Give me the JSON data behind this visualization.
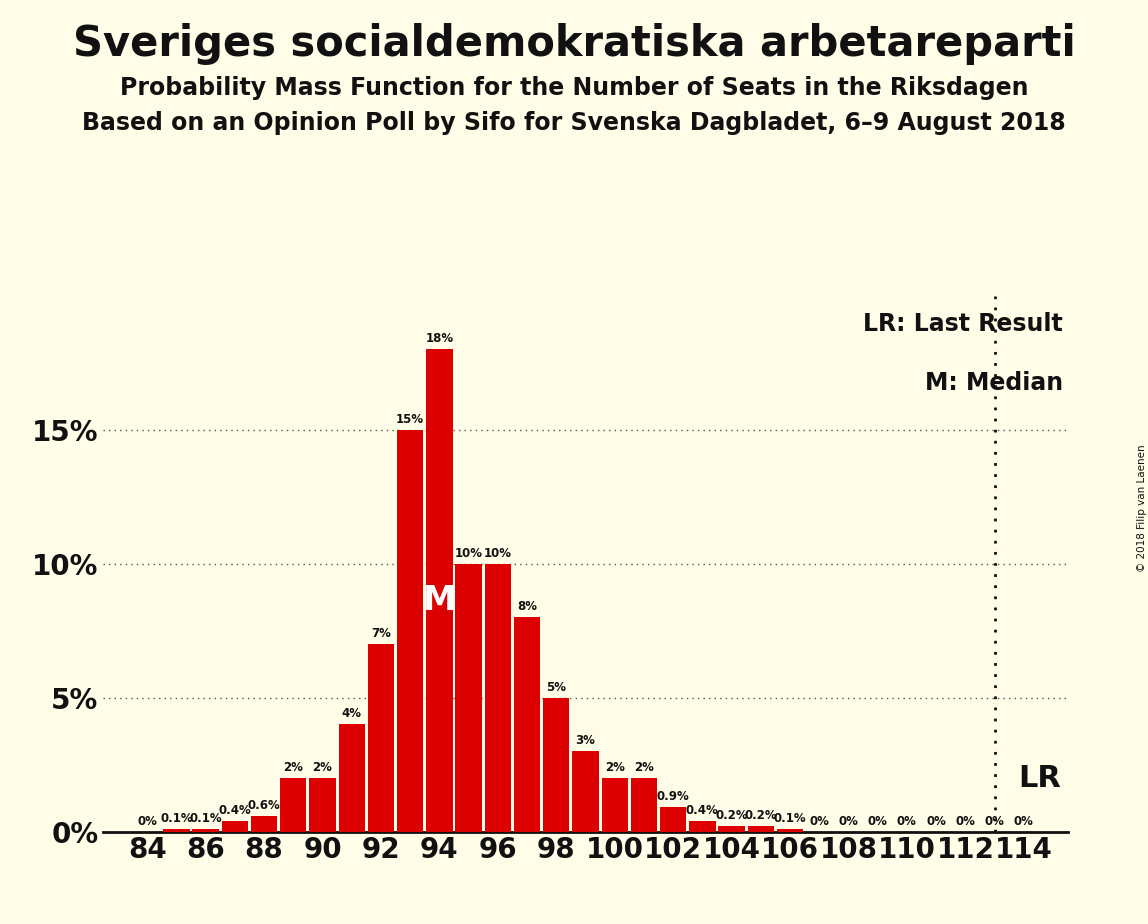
{
  "title": "Sveriges socialdemokratiska arbetareparti",
  "subtitle1": "Probability Mass Function for the Number of Seats in the Riksdagen",
  "subtitle2": "Based on an Opinion Poll by Sifo for Svenska Dagbladet, 6–9 August 2018",
  "copyright": "© 2018 Filip van Laenen",
  "seats": [
    84,
    85,
    86,
    87,
    88,
    89,
    90,
    91,
    92,
    93,
    94,
    95,
    96,
    97,
    98,
    99,
    100,
    101,
    102,
    103,
    104,
    105,
    106,
    107,
    108,
    109,
    110,
    111,
    112,
    113,
    114
  ],
  "values": [
    0.0,
    0.1,
    0.1,
    0.4,
    0.6,
    2.0,
    2.0,
    4.0,
    7.0,
    15.0,
    18.0,
    10.0,
    10.0,
    8.0,
    5.0,
    3.0,
    2.0,
    2.0,
    0.9,
    0.4,
    0.2,
    0.2,
    0.1,
    0.0,
    0.0,
    0.0,
    0.0,
    0.0,
    0.0,
    0.0,
    0.0
  ],
  "labels": [
    "0%",
    "0.1%",
    "0.1%",
    "0.4%",
    "0.6%",
    "2%",
    "2%",
    "4%",
    "7%",
    "15%",
    "18%",
    "10%",
    "10%",
    "8%",
    "5%",
    "3%",
    "2%",
    "2%",
    "0.9%",
    "0.4%",
    "0.2%",
    "0.2%",
    "0.1%",
    "0%",
    "0%",
    "0%",
    "0%",
    "0%",
    "0%",
    "0%",
    "0%"
  ],
  "bar_color": "#dd0000",
  "background_color": "#fffde7",
  "text_color": "#111111",
  "median_seat": 94,
  "lr_seat": 113,
  "yticks": [
    0,
    5,
    10,
    15
  ],
  "ylim": [
    0,
    20
  ],
  "xtick_seats": [
    84,
    86,
    88,
    90,
    92,
    94,
    96,
    98,
    100,
    102,
    104,
    106,
    108,
    110,
    112,
    114
  ],
  "xlim": [
    82.5,
    115.5
  ]
}
